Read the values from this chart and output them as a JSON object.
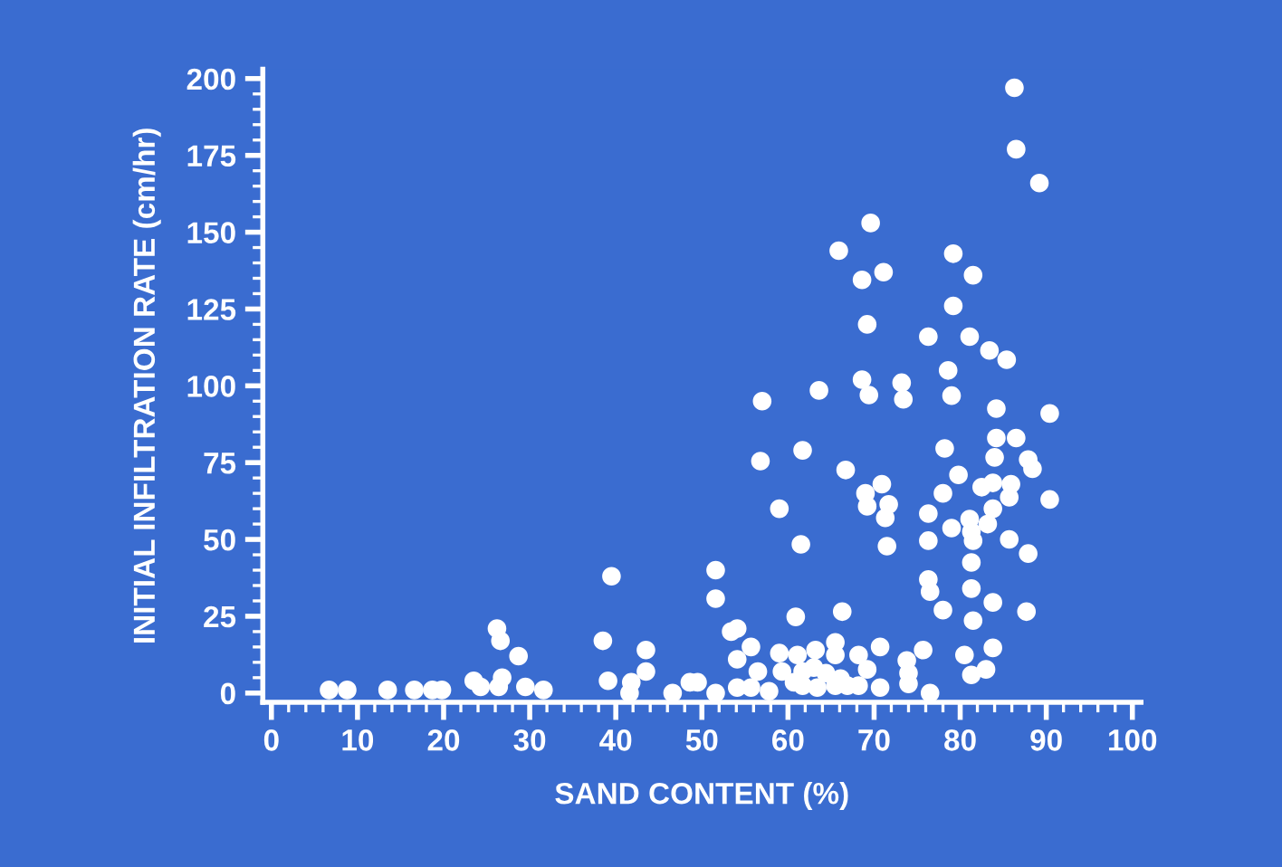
{
  "chart_data": {
    "type": "scatter",
    "xlabel": "SAND CONTENT (%)",
    "ylabel": "INITIAL INFILTRATION RATE (cm/hr)",
    "xlim": [
      -1,
      101
    ],
    "ylim": [
      -3,
      203
    ],
    "xticks": [
      0,
      10,
      20,
      30,
      40,
      50,
      60,
      70,
      80,
      90,
      100
    ],
    "yticks": [
      0,
      25,
      50,
      75,
      100,
      125,
      150,
      175,
      200
    ],
    "grid": false,
    "legend": false,
    "marker": "circle",
    "series": [
      {
        "color": "#ffffff",
        "x": [
          6.7,
          8.8,
          13.5,
          16.6,
          18.7,
          19.8,
          23.5,
          24.3,
          26.2,
          26.6,
          26.8,
          26.4,
          28.7,
          29.5,
          31.6,
          39.5,
          38.5,
          39.1,
          41.8,
          41.6,
          43.5,
          43.5,
          46.6,
          48.6,
          86.3,
          86.5,
          89.2,
          69.6,
          65.9,
          79.2,
          68.6,
          71.1,
          81.5,
          79.2,
          69.2,
          76.3,
          81.1,
          83.4,
          85.4,
          78.6,
          68.6,
          69.4,
          73.2,
          73.4,
          63.6,
          57.0,
          79.0,
          84.2,
          90.4,
          86.5,
          84.2,
          61.7,
          56.8,
          78.2,
          84.0,
          87.9,
          88.4,
          66.7,
          79.8,
          70.9,
          69.0,
          69.2,
          71.7,
          71.3,
          59.0,
          78.0,
          82.5,
          83.8,
          85.9,
          85.7,
          83.8,
          90.4,
          76.3,
          79.0,
          81.1,
          81.3,
          81.5,
          83.2,
          85.7,
          87.9,
          76.3,
          61.5,
          71.5,
          51.6,
          51.6,
          81.3,
          76.3,
          76.5,
          81.3,
          83.8,
          78.0,
          87.7,
          81.5,
          60.9,
          66.3,
          53.4,
          54.1,
          55.7,
          54.1,
          59.0,
          61.1,
          63.2,
          65.5,
          65.5,
          68.2,
          70.7,
          75.7,
          80.5,
          83.8,
          83.0,
          81.3,
          73.8,
          74.0,
          74.0,
          56.5,
          59.3,
          61.7,
          63.0,
          64.4,
          66.1,
          69.2,
          68.2,
          70.7,
          76.5,
          49.5,
          51.6,
          54.1,
          55.7,
          57.8,
          60.7,
          61.7,
          63.4,
          65.5,
          66.9
        ],
        "values": [
          1,
          1,
          1,
          1,
          1,
          1,
          4,
          2,
          21,
          17,
          5,
          2,
          12,
          2,
          1,
          38,
          17,
          4,
          3.5,
          0,
          14,
          7,
          0,
          3.5,
          197,
          177,
          166,
          153,
          144,
          143,
          134.5,
          137,
          136,
          126,
          120,
          116,
          116,
          111.5,
          108.5,
          105,
          102,
          97,
          101,
          95.6,
          98.5,
          95,
          96.8,
          92.6,
          91,
          83,
          83,
          79,
          75.5,
          79.6,
          76.7,
          76,
          73,
          72.6,
          71,
          68,
          65,
          60.8,
          61.4,
          57,
          60,
          65,
          67,
          68.4,
          68,
          63.7,
          60,
          63,
          58.4,
          53.7,
          56.6,
          52.5,
          49.6,
          55,
          50,
          45.4,
          49.6,
          48.4,
          47.8,
          40,
          30.7,
          42.5,
          37,
          33,
          34,
          29.5,
          27,
          26.5,
          23.6,
          24.8,
          26.5,
          20,
          21,
          15,
          11,
          13,
          12.4,
          14,
          16.5,
          12.4,
          12.4,
          15,
          14,
          12.4,
          14.7,
          7.7,
          5.9,
          10.6,
          6.5,
          3,
          7,
          7,
          7,
          8.3,
          6.5,
          4.7,
          7.7,
          2.4,
          1.8,
          0,
          3.5,
          0,
          1.8,
          1.8,
          0.6,
          3.5,
          2.4,
          1.8,
          2.4,
          2.4
        ]
      }
    ]
  }
}
